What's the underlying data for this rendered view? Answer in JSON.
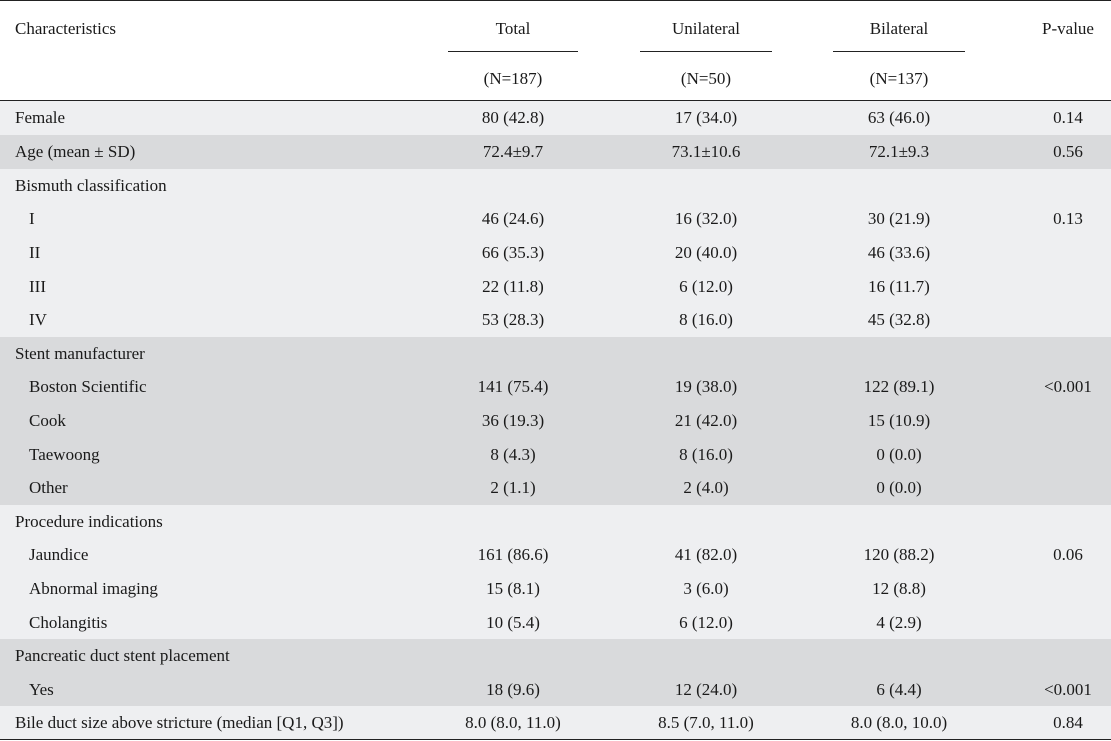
{
  "header": {
    "characteristics": "Characteristics",
    "total": "Total",
    "total_n": "(N=187)",
    "unilateral": "Unilateral",
    "unilateral_n": "(N=50)",
    "bilateral": "Bilateral",
    "bilateral_n": "(N=137)",
    "pvalue": "P-value"
  },
  "rows": [
    {
      "label": "Female",
      "total": "80 (42.8)",
      "uni": "17 (34.0)",
      "bi": "63 (46.0)",
      "p": "0.14"
    },
    {
      "label": "Age (mean ± SD)",
      "total": "72.4±9.7",
      "uni": "73.1±10.6",
      "bi": "72.1±9.3",
      "p": "0.56"
    },
    {
      "label": "Bismuth classification",
      "total": "",
      "uni": "",
      "bi": "",
      "p": ""
    },
    {
      "label": "I",
      "total": "46 (24.6)",
      "uni": "16 (32.0)",
      "bi": "30 (21.9)",
      "p": "0.13"
    },
    {
      "label": "II",
      "total": "66 (35.3)",
      "uni": "20 (40.0)",
      "bi": "46 (33.6)",
      "p": ""
    },
    {
      "label": "III",
      "total": "22 (11.8)",
      "uni": "6 (12.0)",
      "bi": "16 (11.7)",
      "p": ""
    },
    {
      "label": "IV",
      "total": "53 (28.3)",
      "uni": "8 (16.0)",
      "bi": "45 (32.8)",
      "p": ""
    },
    {
      "label": "Stent manufacturer",
      "total": "",
      "uni": "",
      "bi": "",
      "p": ""
    },
    {
      "label": "Boston Scientific",
      "total": "141 (75.4)",
      "uni": "19 (38.0)",
      "bi": "122 (89.1)",
      "p": "<0.001"
    },
    {
      "label": "Cook",
      "total": "36 (19.3)",
      "uni": "21 (42.0)",
      "bi": "15 (10.9)",
      "p": ""
    },
    {
      "label": "Taewoong",
      "total": "8 (4.3)",
      "uni": "8 (16.0)",
      "bi": "0 (0.0)",
      "p": ""
    },
    {
      "label": "Other",
      "total": "2 (1.1)",
      "uni": "2 (4.0)",
      "bi": "0 (0.0)",
      "p": ""
    },
    {
      "label": "Procedure indications",
      "total": "",
      "uni": "",
      "bi": "",
      "p": ""
    },
    {
      "label": "Jaundice",
      "total": "161 (86.6)",
      "uni": "41 (82.0)",
      "bi": "120 (88.2)",
      "p": "0.06"
    },
    {
      "label": "Abnormal imaging",
      "total": "15 (8.1)",
      "uni": "3 (6.0)",
      "bi": "12 (8.8)",
      "p": ""
    },
    {
      "label": "Cholangitis",
      "total": "10 (5.4)",
      "uni": "6 (12.0)",
      "bi": "4 (2.9)",
      "p": ""
    },
    {
      "label": "Pancreatic duct stent placement",
      "total": "",
      "uni": "",
      "bi": "",
      "p": ""
    },
    {
      "label": "Yes",
      "total": "18 (9.6)",
      "uni": "12 (24.0)",
      "bi": "6 (4.4)",
      "p": "<0.001"
    },
    {
      "label": "Bile duct size above stricture (median [Q1, Q3])",
      "total": "8.0 (8.0, 11.0)",
      "uni": "8.5 (7.0, 11.0)",
      "bi": "8.0 (8.0, 10.0)",
      "p": "0.84"
    }
  ]
}
